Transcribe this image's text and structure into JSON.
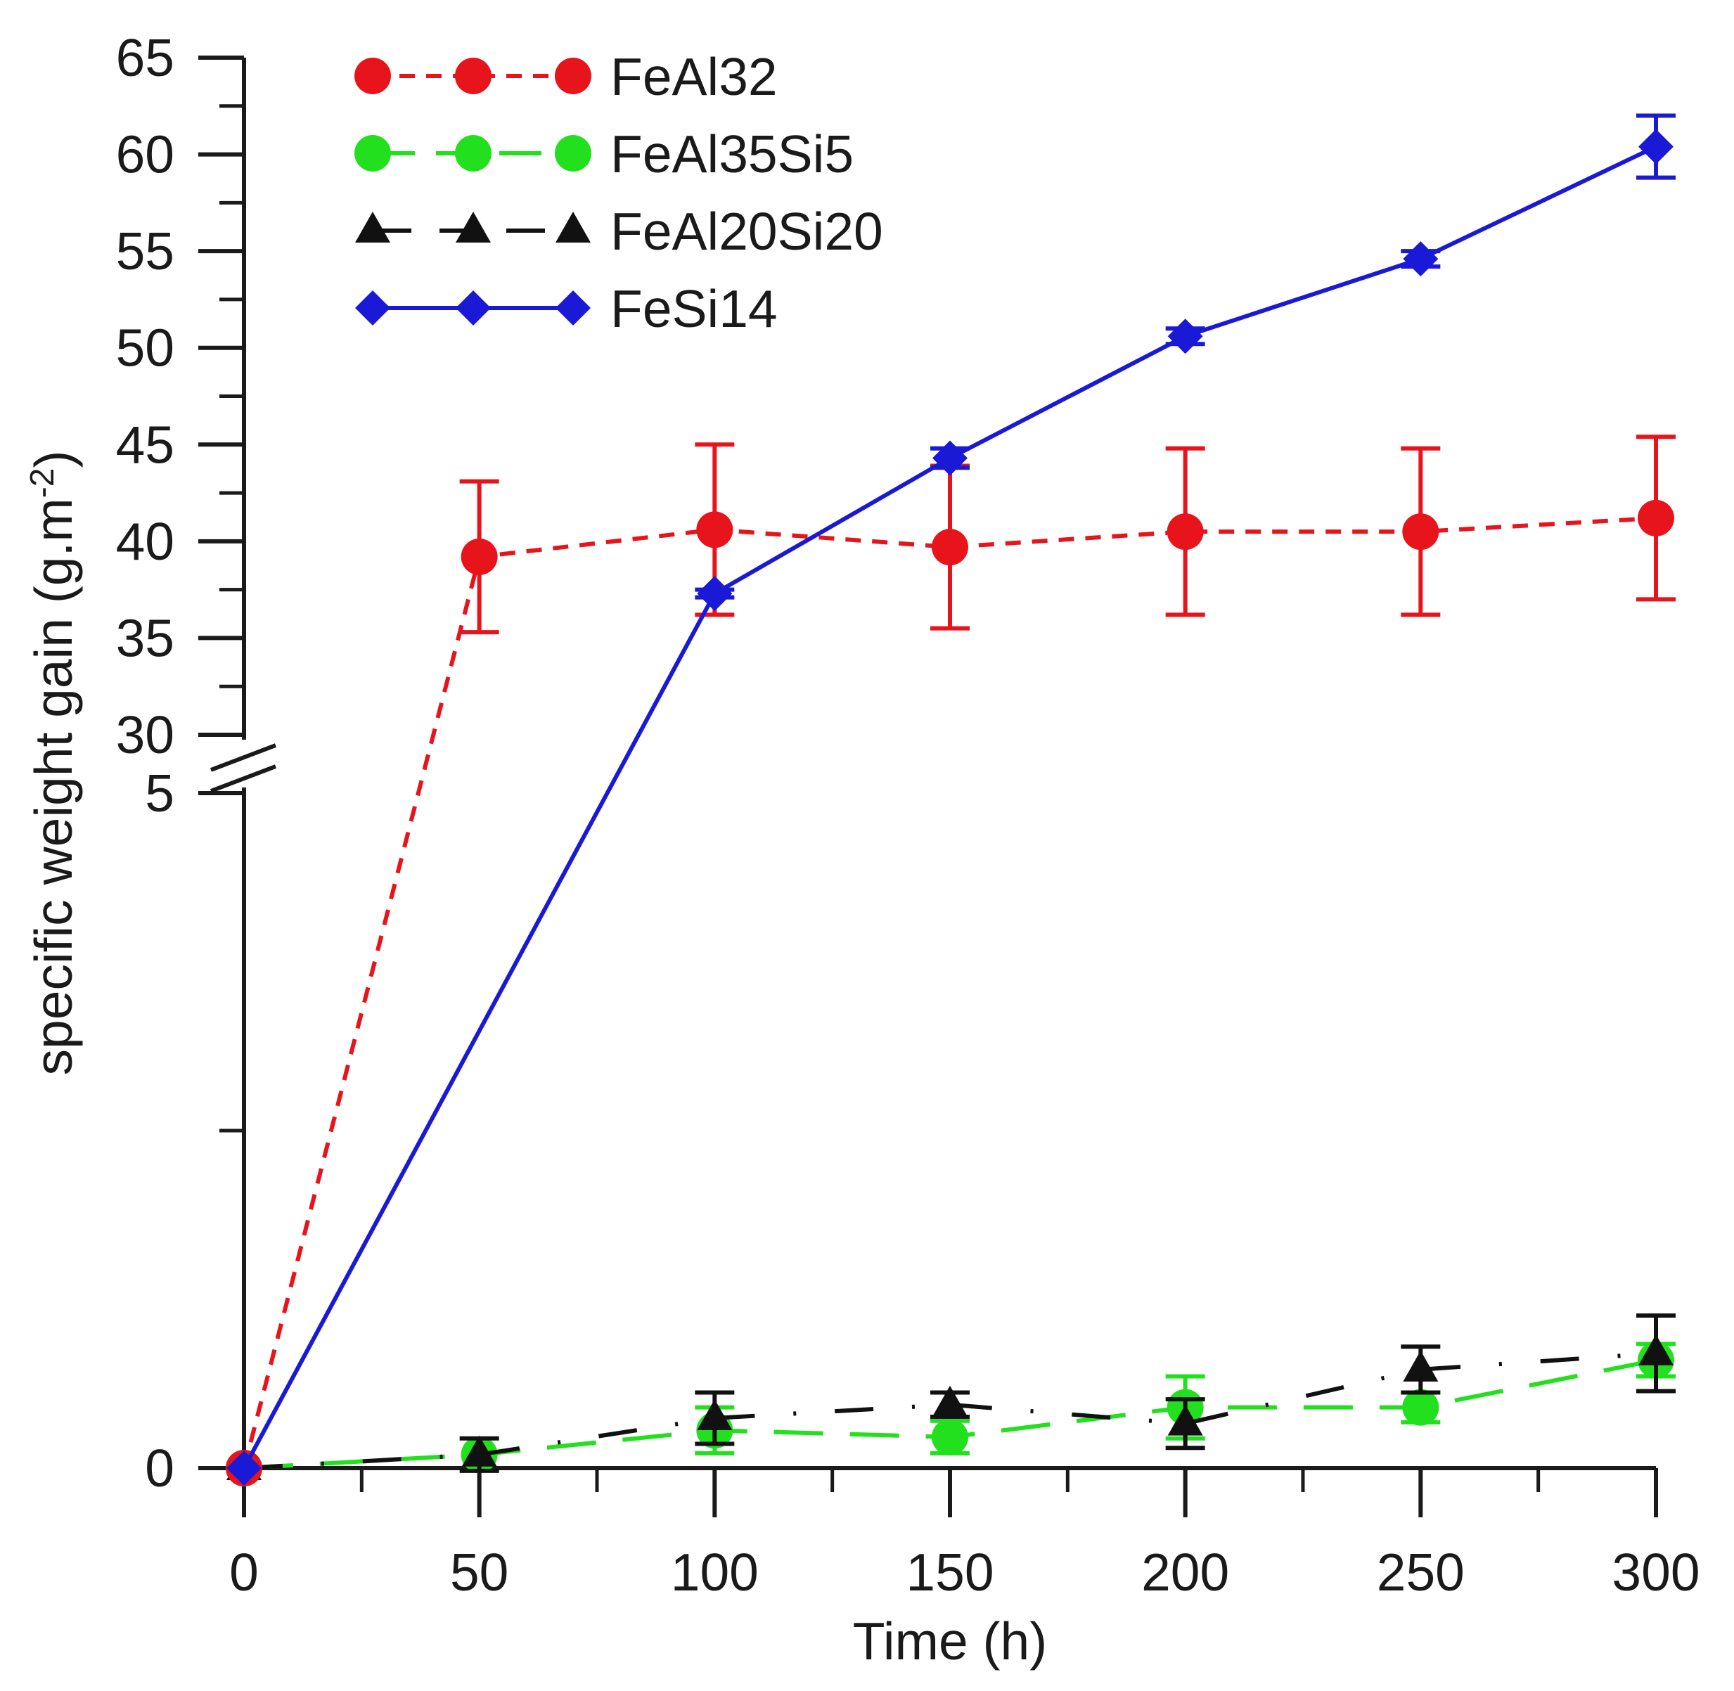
{
  "chart_data": {
    "type": "line",
    "title": "",
    "xlabel": "Time (h)",
    "ylabel": "specific weight gain (g.m",
    "ylabel_sup": "-2",
    "ylabel_close": ")",
    "xlim": [
      0,
      300
    ],
    "x_ticks": [
      0,
      50,
      100,
      150,
      200,
      250,
      300
    ],
    "x_tick_labels": [
      "0",
      "50",
      "100",
      "150",
      "200",
      "250",
      "300"
    ],
    "y_axis_break": {
      "lower_range": [
        0,
        5
      ],
      "upper_range": [
        30,
        65
      ]
    },
    "y_ticks": [
      0,
      5,
      30,
      35,
      40,
      45,
      50,
      55,
      60,
      65
    ],
    "y_tick_labels": [
      "0",
      "5",
      "30",
      "35",
      "40",
      "45",
      "50",
      "55",
      "60",
      "65"
    ],
    "grid": false,
    "legend_position": "top-left",
    "series": [
      {
        "name": "FeAl32",
        "color": "#e8141c",
        "marker": "circle",
        "line_style": "short-dash",
        "x": [
          0,
          50,
          100,
          150,
          200,
          250,
          300
        ],
        "y": [
          0,
          39.2,
          40.6,
          39.7,
          40.5,
          40.5,
          41.2
        ],
        "err": [
          0,
          3.9,
          4.4,
          4.2,
          4.3,
          4.3,
          4.2
        ]
      },
      {
        "name": "FeAl35Si5",
        "color": "#22e01e",
        "marker": "circle",
        "line_style": "long-dash",
        "x": [
          0,
          50,
          100,
          150,
          200,
          250,
          300
        ],
        "y": [
          0,
          0.1,
          0.28,
          0.23,
          0.45,
          0.45,
          0.8
        ],
        "err": [
          0,
          0,
          0.17,
          0.12,
          0.23,
          0.11,
          0.12
        ]
      },
      {
        "name": "FeAl20Si20",
        "color": "#111111",
        "marker": "triangle",
        "line_style": "dash-dot",
        "x": [
          0,
          50,
          100,
          150,
          200,
          250,
          300
        ],
        "y": [
          0,
          0.1,
          0.37,
          0.47,
          0.33,
          0.73,
          0.85
        ],
        "err": [
          0,
          0.12,
          0.19,
          0.09,
          0.18,
          0.17,
          0.28
        ]
      },
      {
        "name": "FeSi14",
        "color": "#1a1ad6",
        "marker": "diamond",
        "line_style": "solid",
        "x": [
          0,
          50,
          100,
          150,
          200,
          250,
          300
        ],
        "y": [
          0,
          null,
          37.3,
          44.3,
          50.6,
          54.6,
          60.4
        ],
        "err": [
          0,
          0,
          0.2,
          0.5,
          0.4,
          0.4,
          1.6
        ]
      }
    ]
  }
}
